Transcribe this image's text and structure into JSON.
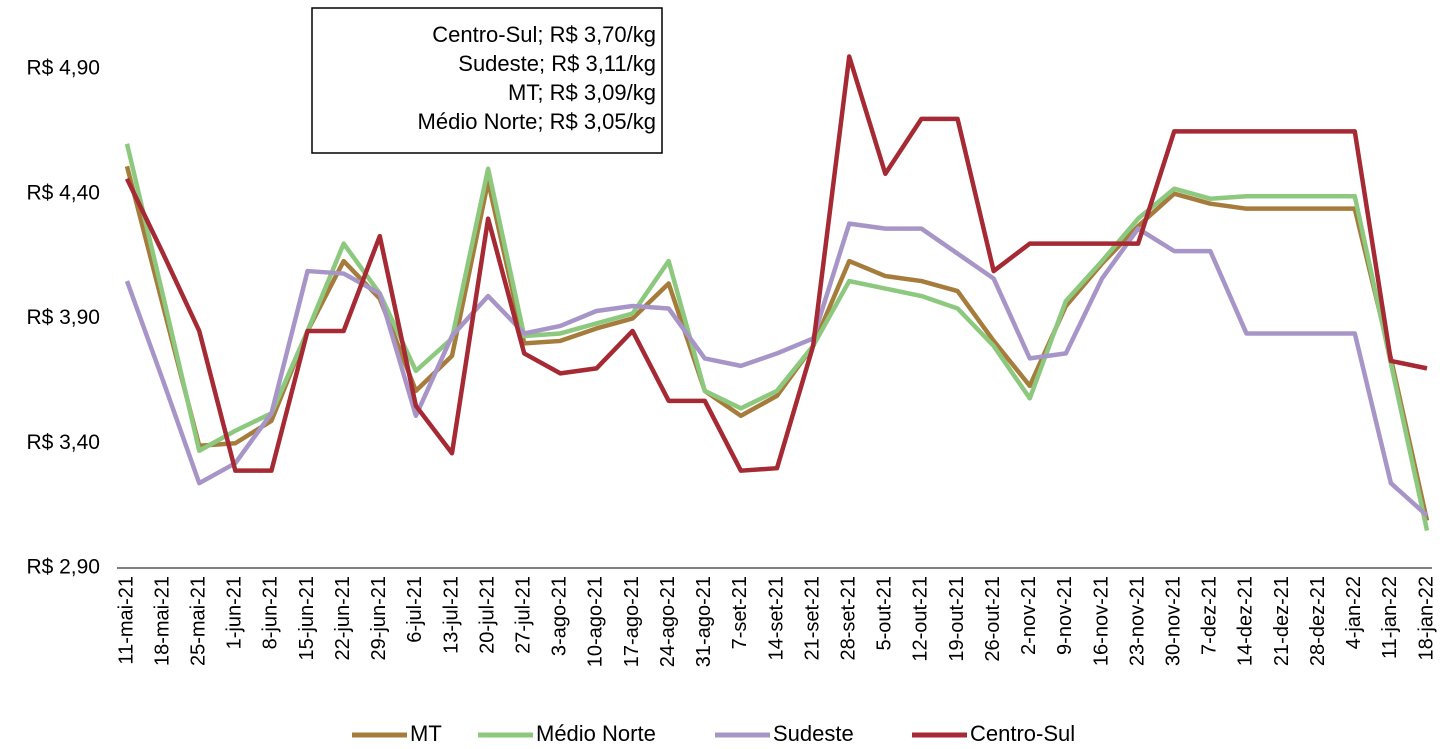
{
  "chart_data": {
    "type": "line",
    "annotations": [
      "Centro-Sul; R$ 3,70/kg",
      "Sudeste; R$ 3,11/kg",
      "MT; R$ 3,09/kg",
      "Médio Norte; R$ 3,05/kg"
    ],
    "categories": [
      "11-mai-21",
      "18-mai-21",
      "25-mai-21",
      "1-jun-21",
      "8-jun-21",
      "15-jun-21",
      "22-jun-21",
      "29-jun-21",
      "6-jul-21",
      "13-jul-21",
      "20-jul-21",
      "27-jul-21",
      "3-ago-21",
      "10-ago-21",
      "17-ago-21",
      "24-ago-21",
      "31-ago-21",
      "7-set-21",
      "14-set-21",
      "21-set-21",
      "28-set-21",
      "5-out-21",
      "12-out-21",
      "19-out-21",
      "26-out-21",
      "2-nov-21",
      "9-nov-21",
      "16-nov-21",
      "23-nov-21",
      "30-nov-21",
      "7-dez-21",
      "14-dez-21",
      "21-dez-21",
      "28-dez-21",
      "4-jan-22",
      "11-jan-22",
      "18-jan-22"
    ],
    "series": [
      {
        "name": "MT",
        "color": "#a67c3c",
        "values": [
          4.51,
          3.95,
          3.39,
          3.4,
          3.49,
          3.85,
          4.13,
          3.98,
          3.61,
          3.75,
          4.45,
          3.8,
          3.81,
          3.86,
          3.9,
          4.04,
          3.61,
          3.51,
          3.59,
          3.79,
          4.13,
          4.07,
          4.05,
          4.01,
          3.81,
          3.63,
          3.95,
          4.12,
          4.27,
          4.4,
          4.36,
          4.34,
          4.34,
          4.34,
          4.34,
          3.74,
          3.09
        ]
      },
      {
        "name": "Médio Norte",
        "color": "#8cc97e",
        "values": [
          4.6,
          3.99,
          3.37,
          3.45,
          3.52,
          3.85,
          4.2,
          4.0,
          3.69,
          3.82,
          4.5,
          3.83,
          3.84,
          3.88,
          3.92,
          4.13,
          3.61,
          3.54,
          3.61,
          3.79,
          4.05,
          4.02,
          3.99,
          3.94,
          3.79,
          3.58,
          3.97,
          4.13,
          4.3,
          4.42,
          4.38,
          4.39,
          4.39,
          4.39,
          4.39,
          3.72,
          3.05
        ]
      },
      {
        "name": "Sudeste",
        "color": "#a895c8",
        "values": [
          4.05,
          3.65,
          3.24,
          3.32,
          3.52,
          4.09,
          4.08,
          4.0,
          3.51,
          3.83,
          3.99,
          3.84,
          3.87,
          3.93,
          3.95,
          3.94,
          3.74,
          3.71,
          3.76,
          3.82,
          4.28,
          4.26,
          4.26,
          4.16,
          4.06,
          3.74,
          3.76,
          4.06,
          4.26,
          4.17,
          4.17,
          3.84,
          3.84,
          3.84,
          3.84,
          3.24,
          3.11
        ]
      },
      {
        "name": "Centro-Sul",
        "color": "#a52a34",
        "values": [
          4.46,
          4.16,
          3.85,
          3.29,
          3.29,
          3.85,
          3.85,
          4.23,
          3.55,
          3.36,
          4.3,
          3.76,
          3.68,
          3.7,
          3.85,
          3.57,
          3.57,
          3.29,
          3.3,
          3.79,
          4.95,
          4.48,
          4.7,
          4.7,
          4.09,
          4.2,
          4.2,
          4.2,
          4.2,
          4.65,
          4.65,
          4.65,
          4.65,
          4.65,
          4.65,
          3.73,
          3.7
        ]
      }
    ],
    "ylim": [
      2.9,
      5.0
    ],
    "yticks": [
      {
        "value": 2.9,
        "label": "R$ 2,90"
      },
      {
        "value": 3.4,
        "label": "R$ 3,40"
      },
      {
        "value": 3.9,
        "label": "R$ 3,90"
      },
      {
        "value": 4.4,
        "label": "R$ 4,40"
      },
      {
        "value": 4.9,
        "label": "R$ 4,90"
      }
    ],
    "grid": false
  }
}
